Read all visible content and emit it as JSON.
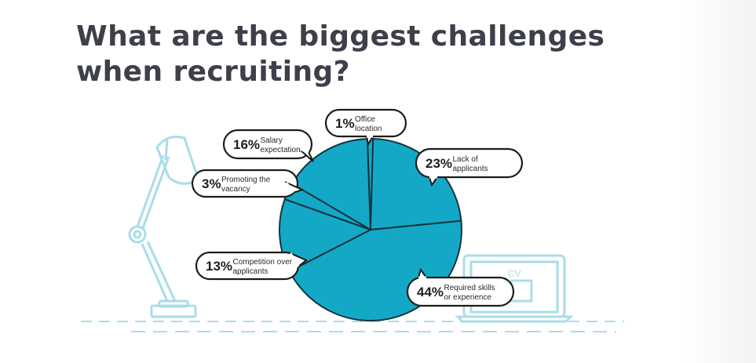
{
  "page": {
    "title_line1": "What are the biggest challenges",
    "title_line2": "when recruiting?"
  },
  "illustration": {
    "laptop_screen_text": "CV"
  },
  "colors": {
    "slice_fill": "#13a9c6",
    "slice_stroke": "#16323f",
    "decor_line": "#a8dde8",
    "title_text": "#3d3f4a"
  },
  "chart_data": {
    "type": "pie",
    "title": "What are the biggest challenges when recruiting?",
    "slices": [
      {
        "label": "Office location",
        "label_lines": [
          "Office",
          "location"
        ],
        "value": 1,
        "value_label": "1%"
      },
      {
        "label": "Lack of applicants",
        "label_lines": [
          "Lack of",
          "applicants"
        ],
        "value": 23,
        "value_label": "23%"
      },
      {
        "label": "Required skills or experience",
        "label_lines": [
          "Required skills",
          "or experience"
        ],
        "value": 44,
        "value_label": "44%"
      },
      {
        "label": "Competition over applicants",
        "label_lines": [
          "Competition over",
          "applicants"
        ],
        "value": 13,
        "value_label": "13%"
      },
      {
        "label": "Promoting the vacancy",
        "label_lines": [
          "Promoting the",
          "vacancy"
        ],
        "value": 3,
        "value_label": "3%"
      },
      {
        "label": "Salary expectation",
        "label_lines": [
          "Salary",
          "expectation"
        ],
        "value": 16,
        "value_label": "16%"
      }
    ]
  }
}
